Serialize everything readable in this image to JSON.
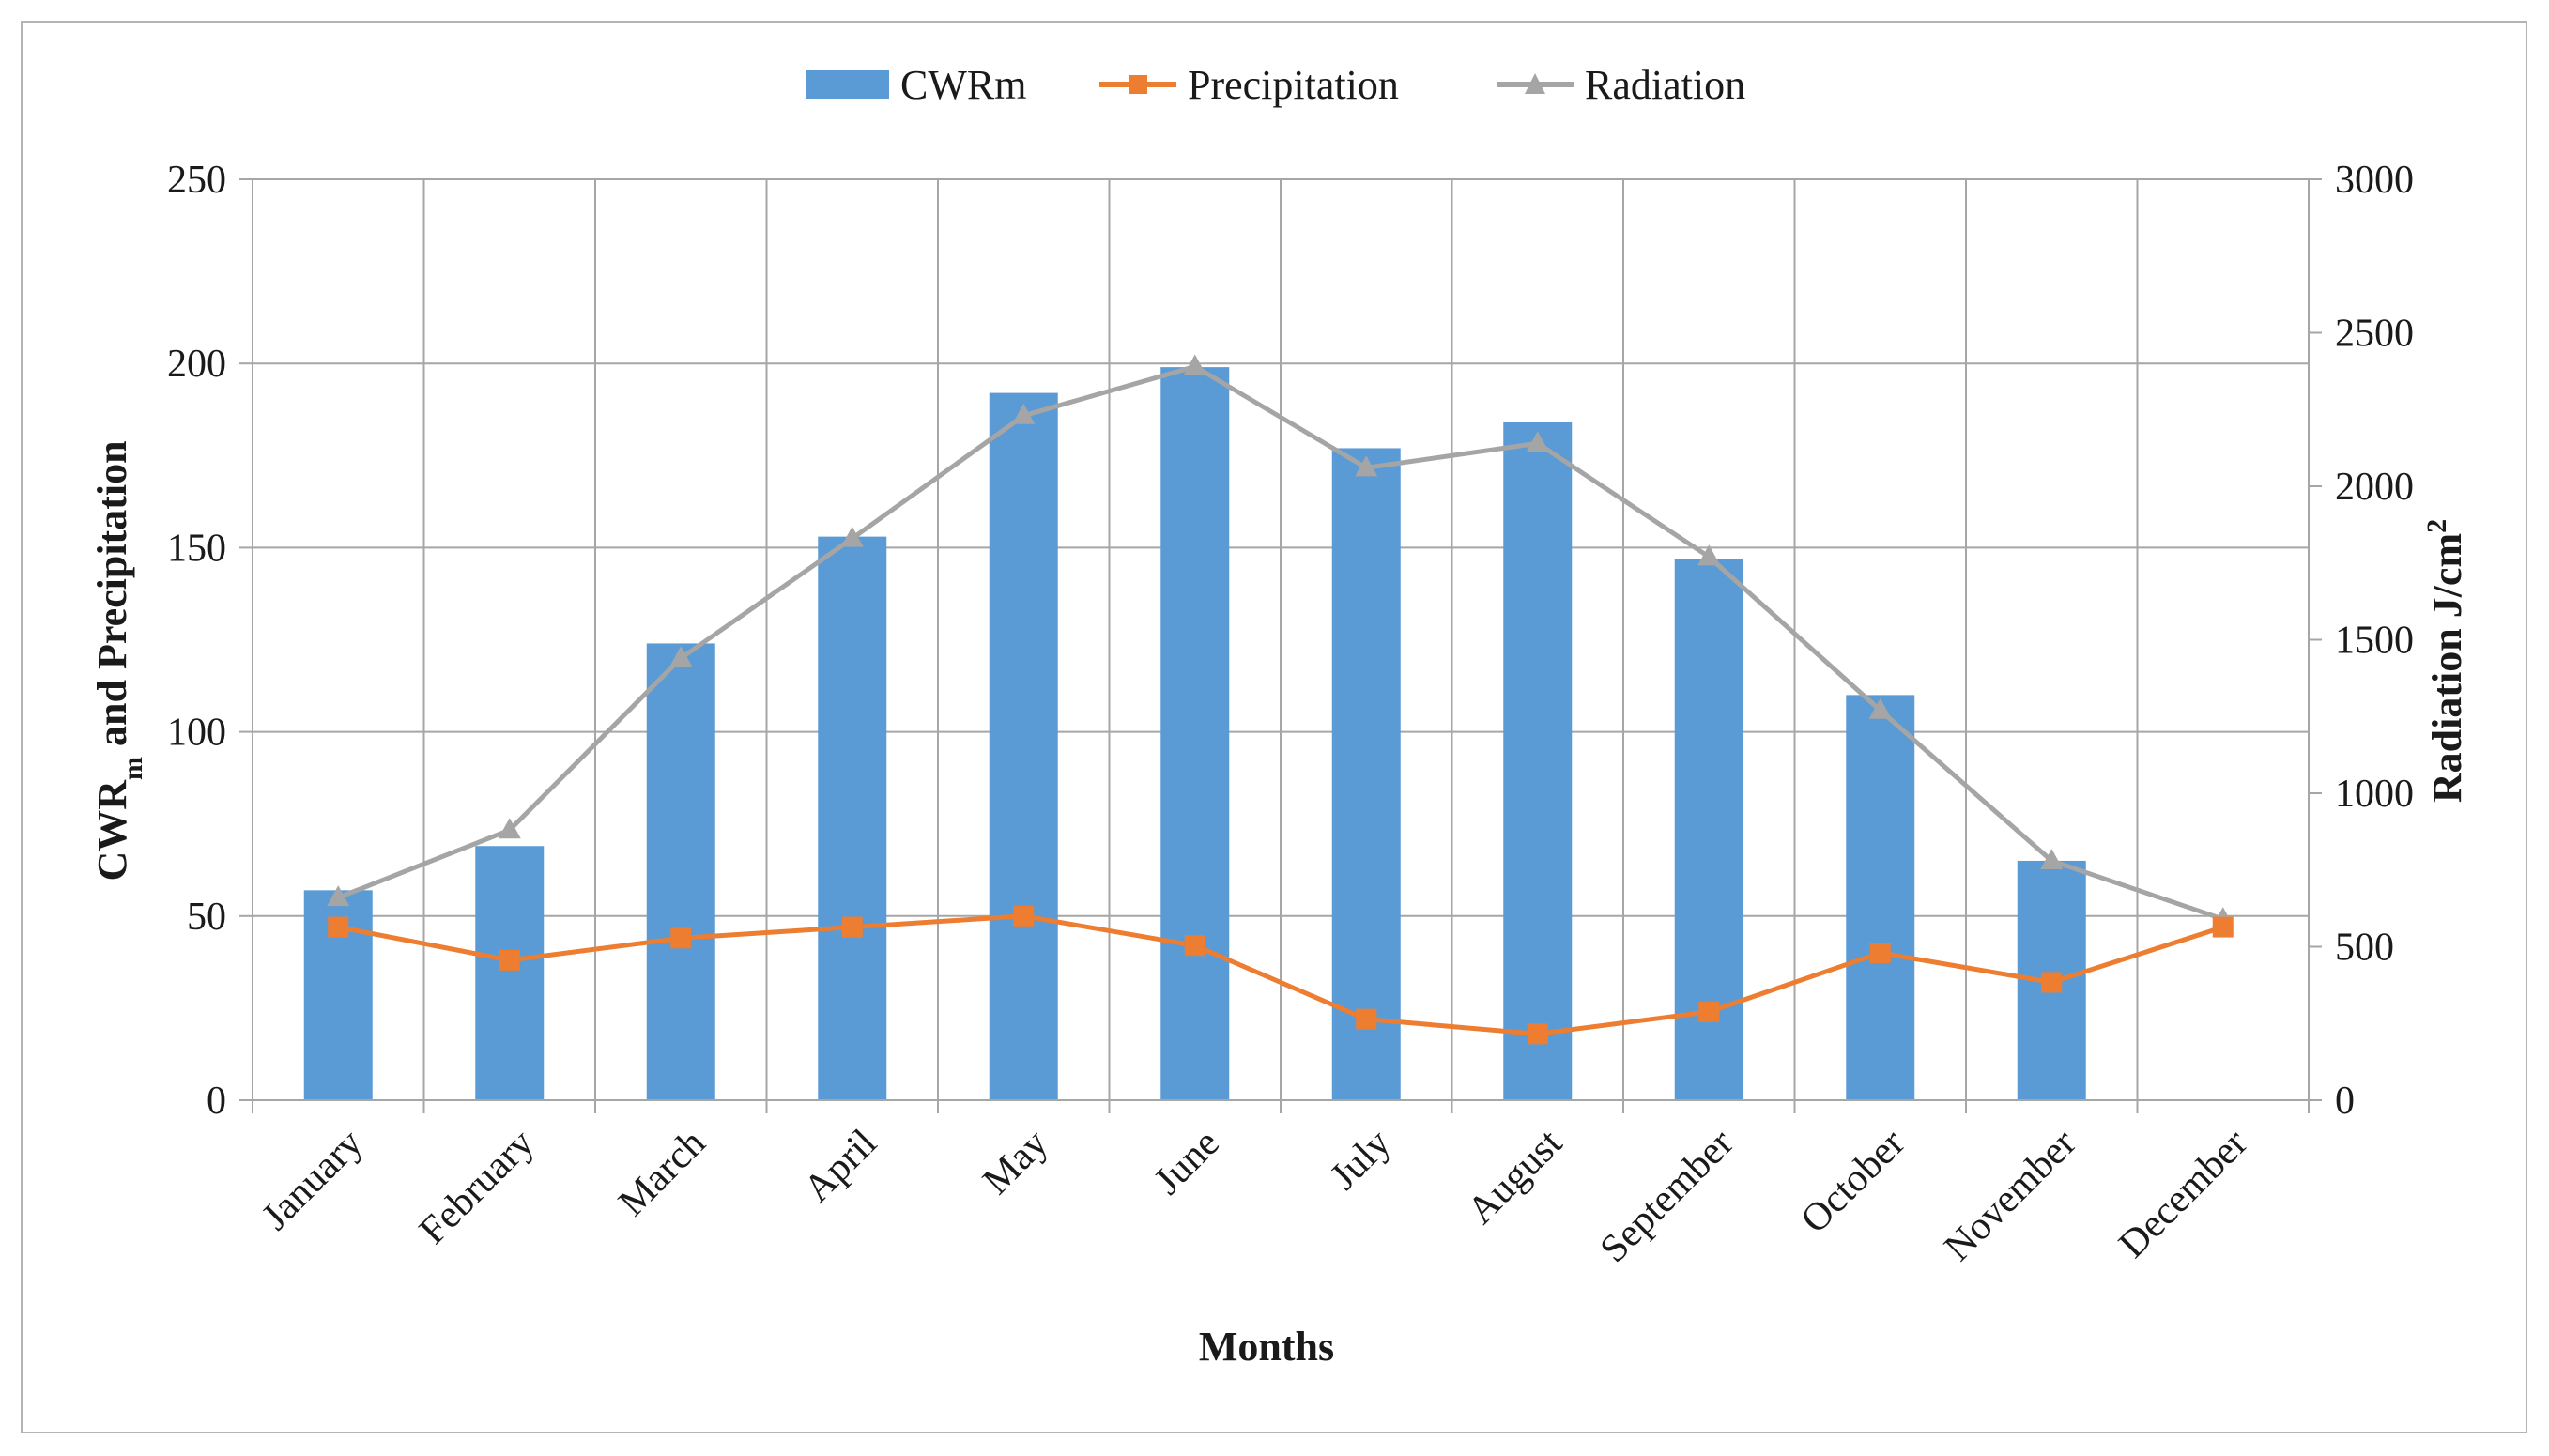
{
  "chart_data": {
    "type": "bar+line",
    "categories": [
      "January",
      "February",
      "March",
      "April",
      "May",
      "June",
      "July",
      "August",
      "September",
      "October",
      "November",
      "December"
    ],
    "series": [
      {
        "name": "CWRm",
        "kind": "bar",
        "axis": "left",
        "color": "#5b9bd5",
        "values": [
          57,
          69,
          124,
          153,
          192,
          199,
          177,
          184,
          147,
          110,
          65,
          0
        ]
      },
      {
        "name": "Precipitation",
        "kind": "line",
        "marker": "square",
        "axis": "left",
        "color": "#ed7d31",
        "values": [
          47,
          38,
          44,
          47,
          50,
          42,
          22,
          18,
          24,
          40,
          32,
          47
        ]
      },
      {
        "name": "Radiation",
        "kind": "line",
        "marker": "triangle",
        "axis": "right",
        "color": "#a5a5a5",
        "values": [
          660,
          880,
          1440,
          1830,
          2230,
          2390,
          2060,
          2140,
          1770,
          1270,
          780,
          590
        ]
      }
    ],
    "xlabel": "Months",
    "ylabel_left": {
      "main": "CWR",
      "sub": "m",
      "rest": " and Precipitation"
    },
    "ylabel_right": {
      "main": "Radiation J/cm",
      "sup": "2"
    },
    "ylim_left": [
      0,
      250
    ],
    "yticks_left": [
      "0",
      "50",
      "100",
      "150",
      "200",
      "250"
    ],
    "ylim_right": [
      0,
      3000
    ],
    "yticks_right": [
      "0",
      "500",
      "1000",
      "1500",
      "2000",
      "2500",
      "3000"
    ],
    "grid": true,
    "legend_position": "top-center"
  }
}
